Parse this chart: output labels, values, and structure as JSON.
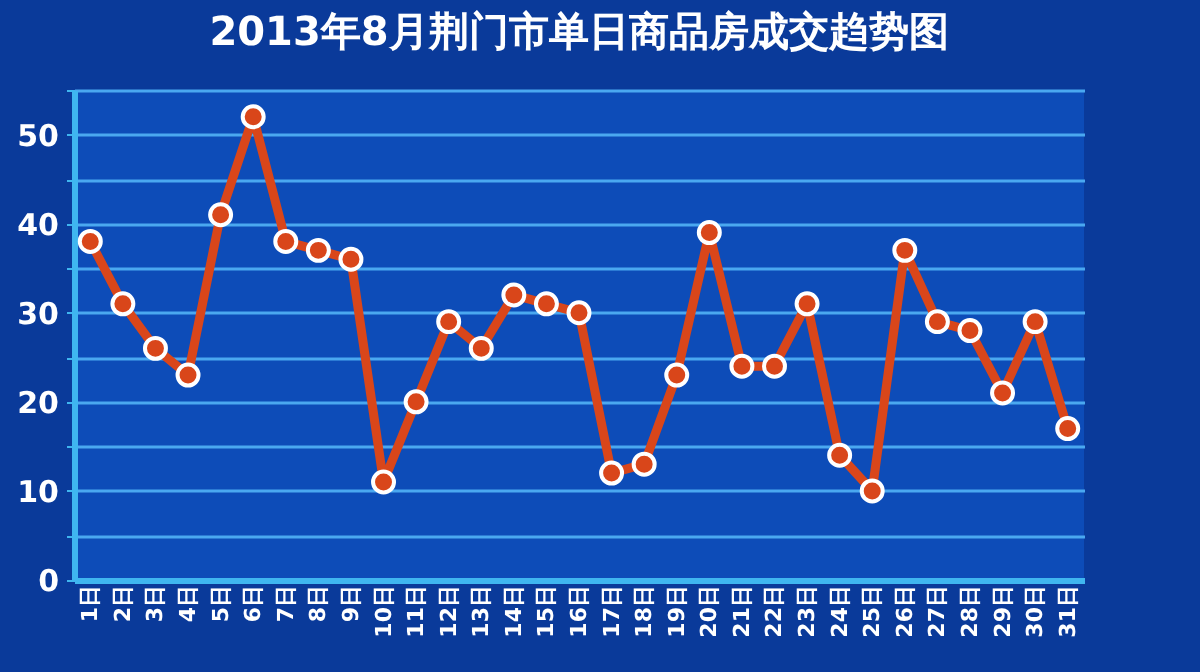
{
  "chart_data": {
    "type": "line",
    "title": "2013年8月荆门市单日商品房成交趋势图",
    "categories": [
      "1日",
      "2日",
      "3日",
      "4日",
      "5日",
      "6日",
      "7日",
      "8日",
      "9日",
      "10日",
      "11日",
      "12日",
      "13日",
      "14日",
      "15日",
      "16日",
      "17日",
      "18日",
      "19日",
      "20日",
      "21日",
      "22日",
      "23日",
      "24日",
      "25日",
      "26日",
      "27日",
      "28日",
      "29日",
      "30日",
      "31日"
    ],
    "series": [
      {
        "color": "#d9461a",
        "values": [
          38,
          31,
          26,
          23,
          41,
          52,
          38,
          37,
          36,
          11,
          20,
          29,
          26,
          32,
          31,
          30,
          12,
          13,
          23,
          39,
          24,
          24,
          31,
          14,
          10,
          37,
          29,
          28,
          21,
          29,
          17
        ]
      }
    ],
    "ylim": [
      0,
      55
    ],
    "yticks": [
      0,
      {
        "value": 5,
        "label": null
      },
      10,
      {
        "value": 15,
        "label": null
      },
      20,
      {
        "value": 25,
        "label": null
      },
      30,
      {
        "value": 35,
        "label": null
      },
      40,
      {
        "value": 45,
        "label": null
      },
      50,
      {
        "value": 55,
        "label": null
      }
    ],
    "grid": "y",
    "marker": "circle",
    "line_style": "solid"
  }
}
